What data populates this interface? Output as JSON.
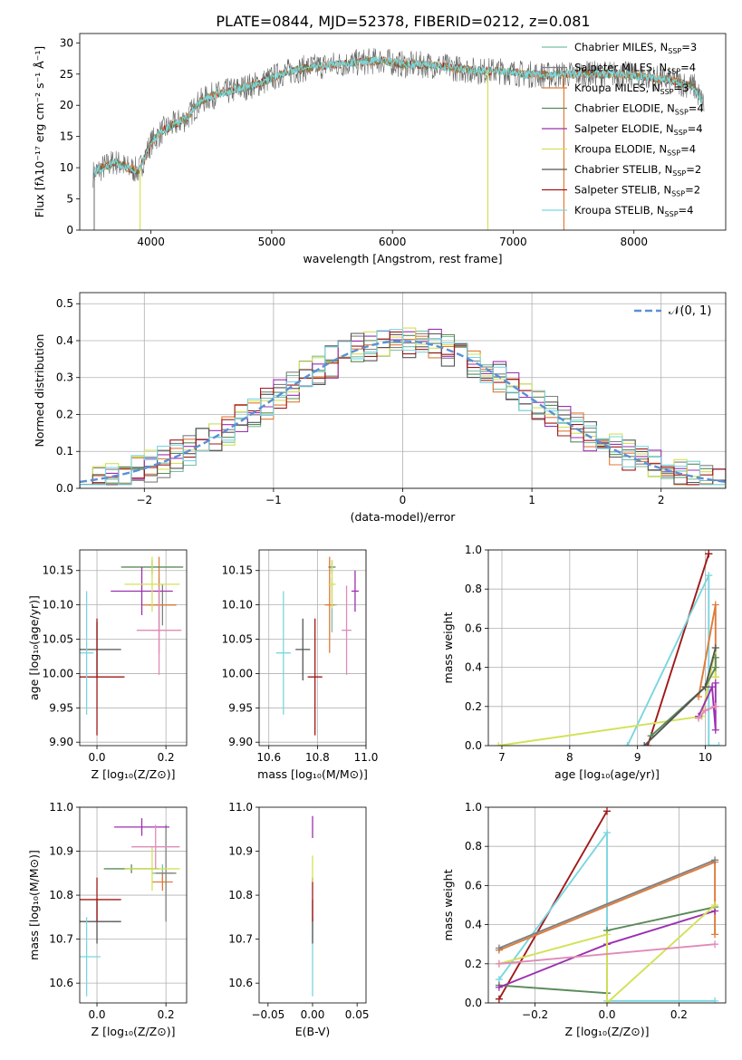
{
  "figure": {
    "title": "PLATE=0844, MJD=52378, FIBERID=0212, z=0.081"
  },
  "model_colors": {
    "Chabrier MILES": "#7bbfa0",
    "Salpeter MILES": "#808080",
    "Kroupa MILES": "#e07b39",
    "Chabrier ELODIE": "#5a8a5a",
    "Salpeter ELODIE": "#9b30b0",
    "Kroupa ELODIE": "#d4e157",
    "Chabrier STELIB": "#555555",
    "Salpeter STELIB": "#a01818",
    "Kroupa STELIB": "#7ad6df"
  },
  "chart_data": [
    {
      "id": "spectrum",
      "type": "line",
      "title": "PLATE=0844, MJD=52378, FIBERID=0212, z=0.081",
      "xlabel": "wavelength [Angstrom, rest frame]",
      "ylabel": "Flux [fλ10⁻¹⁷ erg cm⁻² s⁻¹ Å⁻¹]",
      "xlim": [
        3410,
        8760
      ],
      "ylim": [
        0,
        31.5
      ],
      "xticks": [
        4000,
        5000,
        6000,
        7000,
        8000
      ],
      "yticks": [
        0,
        5,
        10,
        15,
        20,
        25,
        30
      ],
      "grid": false,
      "legend_position": "top-right",
      "continuum": {
        "x": [
          3520,
          3600,
          3700,
          3800,
          3900,
          4000,
          4100,
          4200,
          4300,
          4400,
          4500,
          4700,
          4900,
          5100,
          5300,
          5500,
          5700,
          5900,
          6100,
          6300,
          6500,
          6700,
          6900,
          7100,
          7300,
          7500,
          7700,
          7900,
          8100,
          8300,
          8500,
          8580
        ],
        "y": [
          9,
          10,
          11,
          10,
          9.5,
          14,
          16,
          17,
          18,
          20.5,
          21.5,
          22.5,
          23.5,
          25.2,
          26,
          26.5,
          26.8,
          27.2,
          26.5,
          26.5,
          26,
          25.5,
          25.5,
          25,
          24.8,
          25,
          25,
          25,
          24.5,
          24,
          23,
          20
        ]
      },
      "observed_noise_amplitude": 2.2,
      "series": [
        {
          "name": "Chabrier MILES",
          "legend_label": "Chabrier MILES, N",
          "n_ssp_sub": "SSP",
          "n_ssp": "=3"
        },
        {
          "name": "Salpeter MILES",
          "legend_label": "Salpeter MILES, N",
          "n_ssp_sub": "SSP",
          "n_ssp": "=4"
        },
        {
          "name": "Kroupa MILES",
          "legend_label": "Kroupa MILES, N",
          "n_ssp_sub": "SSP",
          "n_ssp": "=3"
        },
        {
          "name": "Chabrier ELODIE",
          "legend_label": "Chabrier ELODIE, N",
          "n_ssp_sub": "SSP",
          "n_ssp": "=4"
        },
        {
          "name": "Salpeter ELODIE",
          "legend_label": "Salpeter ELODIE, N",
          "n_ssp_sub": "SSP",
          "n_ssp": "=4"
        },
        {
          "name": "Kroupa ELODIE",
          "legend_label": "Kroupa ELODIE, N",
          "n_ssp_sub": "SSP",
          "n_ssp": "=4"
        },
        {
          "name": "Chabrier STELIB",
          "legend_label": "Chabrier STELIB, N",
          "n_ssp_sub": "SSP",
          "n_ssp": "=2"
        },
        {
          "name": "Salpeter STELIB",
          "legend_label": "Salpeter STELIB, N",
          "n_ssp_sub": "SSP",
          "n_ssp": "=2"
        },
        {
          "name": "Kroupa STELIB",
          "legend_label": "Kroupa STELIB, N",
          "n_ssp_sub": "SSP",
          "n_ssp": "=4"
        }
      ],
      "drop_lines": [
        {
          "x": 3530,
          "model": "Salpeter MILES"
        },
        {
          "x": 3910,
          "model": "Kroupa ELODIE"
        },
        {
          "x": 6790,
          "model": "Kroupa ELODIE"
        },
        {
          "x": 7420,
          "model": "Kroupa MILES"
        }
      ]
    },
    {
      "id": "residuals",
      "type": "histogram",
      "xlabel": "(data-model)/error",
      "ylabel": "Normed distribution",
      "xlim": [
        -2.5,
        2.5
      ],
      "ylim": [
        0,
        0.53
      ],
      "xticks": [
        -2,
        -1,
        0,
        1,
        2
      ],
      "yticks": [
        0.0,
        0.1,
        0.2,
        0.3,
        0.4,
        0.5
      ],
      "grid": true,
      "legend_position": "top-right",
      "bin_width": 0.1,
      "bin_start": -2.5,
      "reference": {
        "name": "N(0,1)",
        "label": "𝒩(0, 1)",
        "color": "#5b8fd6",
        "mu": 0,
        "sigma": 1
      },
      "series": [
        "Chabrier MILES",
        "Salpeter MILES",
        "Kroupa MILES",
        "Chabrier ELODIE",
        "Salpeter ELODIE",
        "Kroupa ELODIE",
        "Chabrier STELIB",
        "Salpeter STELIB",
        "Kroupa STELIB"
      ]
    },
    {
      "id": "age-vs-Z",
      "type": "errorbar",
      "xlabel": "Z [log₁₀(Z/Z⊙)]",
      "ylabel": "age  [log₁₀(age/yr)]",
      "xlim": [
        -0.05,
        0.26
      ],
      "ylim": [
        9.895,
        10.18
      ],
      "xticks": [
        0.0,
        0.2
      ],
      "xticklabels": [
        "0.0",
        "0.2"
      ],
      "yticks": [
        9.9,
        9.95,
        10.0,
        10.05,
        10.1,
        10.15
      ],
      "yticklabels": [
        "9.90",
        "9.95",
        "10.00",
        "10.05",
        "10.10",
        "10.15"
      ],
      "grid": true,
      "points": [
        {
          "model": "Chabrier MILES",
          "x": 0.18,
          "y": 10.1,
          "xerr": 0.05,
          "yerr": 0.04
        },
        {
          "model": "Salpeter MILES",
          "x": 0.19,
          "y": 10.1,
          "xerr": 0.04,
          "yerr": 0.03
        },
        {
          "model": "Kroupa MILES",
          "x": 0.18,
          "y": 10.1,
          "xerr": 0.05,
          "yerr": 0.07
        },
        {
          "model": "Chabrier ELODIE",
          "x": 0.16,
          "y": 10.155,
          "xerr": 0.09,
          "yerr": 0.01
        },
        {
          "model": "Salpeter ELODIE",
          "x": 0.13,
          "y": 10.12,
          "xerr": 0.09,
          "yerr": 0.035
        },
        {
          "model": "Kroupa ELODIE",
          "x": 0.16,
          "y": 10.13,
          "xerr": 0.08,
          "yerr": 0.04
        },
        {
          "model": "Chabrier STELIB",
          "x": 0.0,
          "y": 10.035,
          "xerr": 0.07,
          "yerr": 0.04
        },
        {
          "model": "Salpeter STELIB",
          "x": 0.0,
          "y": 9.995,
          "xerr": 0.08,
          "yerr": 0.085
        },
        {
          "model": "Kroupa STELIB",
          "x": -0.03,
          "y": 10.03,
          "xerr": 0.02,
          "yerr": 0.09
        },
        {
          "model": "Pink",
          "x": 0.18,
          "y": 10.063,
          "xerr": 0.065,
          "yerr": 0.065
        }
      ]
    },
    {
      "id": "age-vs-mass",
      "type": "errorbar",
      "xlabel": "mass [log₁₀(M/M⊙)]",
      "xlim": [
        10.56,
        11.0
      ],
      "ylim": [
        9.895,
        10.18
      ],
      "xticks": [
        10.6,
        10.8,
        11.0
      ],
      "xticklabels": [
        "10.6",
        "10.8",
        "11.0"
      ],
      "yticks": [
        9.9,
        9.95,
        10.0,
        10.05,
        10.1,
        10.15
      ],
      "yticklabels": [
        "9.90",
        "9.95",
        "10.00",
        "10.05",
        "10.10",
        "10.15"
      ],
      "grid": true,
      "points": [
        {
          "model": "Chabrier MILES",
          "x": 10.86,
          "y": 10.1,
          "xerr": 0.02,
          "yerr": 0.04
        },
        {
          "model": "Kroupa MILES",
          "x": 10.85,
          "y": 10.1,
          "xerr": 0.02,
          "yerr": 0.07
        },
        {
          "model": "Chabrier ELODIE",
          "x": 10.86,
          "y": 10.155,
          "xerr": 0.015,
          "yerr": 0.01
        },
        {
          "model": "Salpeter ELODIE",
          "x": 10.955,
          "y": 10.12,
          "xerr": 0.015,
          "yerr": 0.03
        },
        {
          "model": "Kroupa ELODIE",
          "x": 10.86,
          "y": 10.13,
          "xerr": 0.015,
          "yerr": 0.035
        },
        {
          "model": "Chabrier STELIB",
          "x": 10.74,
          "y": 10.035,
          "xerr": 0.03,
          "yerr": 0.045
        },
        {
          "model": "Salpeter STELIB",
          "x": 10.79,
          "y": 9.995,
          "xerr": 0.03,
          "yerr": 0.085
        },
        {
          "model": "Kroupa STELIB",
          "x": 10.66,
          "y": 10.03,
          "xerr": 0.03,
          "yerr": 0.09
        },
        {
          "model": "Pink",
          "x": 10.92,
          "y": 10.063,
          "xerr": 0.02,
          "yerr": 0.065
        }
      ]
    },
    {
      "id": "weight-vs-age",
      "type": "line",
      "xlabel": "age  [log₁₀(age/yr)]",
      "ylabel": "mass weight",
      "xlim": [
        6.8,
        10.3
      ],
      "ylim": [
        0,
        1.0
      ],
      "xticks": [
        7,
        8,
        9,
        10
      ],
      "yticks": [
        0.0,
        0.2,
        0.4,
        0.6,
        0.8,
        1.0
      ],
      "yticklabels": [
        "0.0",
        "0.2",
        "0.4",
        "0.6",
        "0.8",
        "1.0"
      ],
      "grid": true,
      "series": [
        {
          "name": "Salpeter STELIB",
          "x": [
            9.15,
            10.05,
            10.05
          ],
          "y": [
            0.0,
            0.98,
            0.98
          ]
        },
        {
          "name": "Kroupa STELIB",
          "x": [
            8.85,
            10.05,
            10.05,
            10.2
          ],
          "y": [
            0.0,
            0.87,
            0.0,
            0.0
          ]
        },
        {
          "name": "Kroupa MILES",
          "x": [
            9.9,
            10.15,
            10.15
          ],
          "y": [
            0.25,
            0.72,
            0.35
          ]
        },
        {
          "name": "Kroupa ELODIE",
          "x": [
            6.95,
            9.95,
            10.15,
            10.15
          ],
          "y": [
            0.0,
            0.15,
            0.5,
            0.35
          ]
        },
        {
          "name": "Chabrier ELODIE",
          "x": [
            9.2,
            10.0,
            10.15,
            10.15
          ],
          "y": [
            0.05,
            0.3,
            0.4,
            0.45
          ]
        },
        {
          "name": "Salpeter ELODIE",
          "x": [
            9.9,
            10.1,
            10.15,
            10.15
          ],
          "y": [
            0.15,
            0.3,
            0.08,
            0.32
          ]
        },
        {
          "name": "Pink",
          "x": [
            9.9,
            10.0,
            10.15
          ],
          "y": [
            0.14,
            0.18,
            0.2
          ]
        },
        {
          "name": "Chabrier STELIB",
          "x": [
            9.1,
            10.0,
            10.15
          ],
          "y": [
            0.0,
            0.3,
            0.5
          ]
        }
      ]
    },
    {
      "id": "mass-vs-Z",
      "type": "errorbar",
      "xlabel": "Z [log₁₀(Z/Z⊙)]",
      "ylabel": "mass [log₁₀(M/M⊙)]",
      "xlim": [
        -0.05,
        0.26
      ],
      "ylim": [
        10.555,
        11.0
      ],
      "xticks": [
        0.0,
        0.2
      ],
      "xticklabels": [
        "0.0",
        "0.2"
      ],
      "yticks": [
        10.6,
        10.7,
        10.8,
        10.9,
        11.0
      ],
      "yticklabels": [
        "10.6",
        "10.7",
        "10.8",
        "10.9",
        "11.0"
      ],
      "grid": true,
      "points": [
        {
          "model": "Chabrier MILES",
          "x": 0.19,
          "y": 10.85,
          "xerr": 0.03,
          "yerr": 0.02
        },
        {
          "model": "Kroupa MILES",
          "x": 0.19,
          "y": 10.83,
          "xerr": 0.03,
          "yerr": 0.02
        },
        {
          "model": "Salpeter MILES",
          "x": 0.2,
          "y": 10.85,
          "xerr": 0.03,
          "yerr": 0.11
        },
        {
          "model": "Chabrier ELODIE",
          "x": 0.1,
          "y": 10.86,
          "xerr": 0.08,
          "yerr": 0.01
        },
        {
          "model": "Salpeter ELODIE",
          "x": 0.13,
          "y": 10.955,
          "xerr": 0.08,
          "yerr": 0.02
        },
        {
          "model": "Kroupa ELODIE",
          "x": 0.16,
          "y": 10.86,
          "xerr": 0.08,
          "yerr": 0.05
        },
        {
          "model": "Chabrier STELIB",
          "x": 0.0,
          "y": 10.74,
          "xerr": 0.07,
          "yerr": 0.05
        },
        {
          "model": "Salpeter STELIB",
          "x": 0.0,
          "y": 10.79,
          "xerr": 0.07,
          "yerr": 0.05
        },
        {
          "model": "Kroupa STELIB",
          "x": -0.03,
          "y": 10.66,
          "xerr": 0.04,
          "yerr": 0.09
        },
        {
          "model": "Pink",
          "x": 0.17,
          "y": 10.91,
          "xerr": 0.07,
          "yerr": 0.05
        }
      ]
    },
    {
      "id": "mass-vs-EBV",
      "type": "errorbar",
      "xlabel": "E(B-V)",
      "xlim": [
        -0.06,
        0.06
      ],
      "ylim": [
        10.555,
        11.0
      ],
      "xticks": [
        -0.05,
        0.0,
        0.05
      ],
      "xticklabels": [
        "−0.05",
        "0.00",
        "0.05"
      ],
      "yticks": [
        10.6,
        10.7,
        10.8,
        10.9,
        11.0
      ],
      "yticklabels": [
        "10.6",
        "10.7",
        "10.8",
        "10.9",
        "11.0"
      ],
      "grid": false,
      "points": [
        {
          "model": "Kroupa STELIB",
          "x": 0.0,
          "y": 10.66,
          "xerr": 0.0,
          "yerr": 0.09
        },
        {
          "model": "Chabrier STELIB",
          "x": 0.0,
          "y": 10.74,
          "xerr": 0.0,
          "yerr": 0.05
        },
        {
          "model": "Salpeter STELIB",
          "x": 0.0,
          "y": 10.79,
          "xerr": 0.0,
          "yerr": 0.05
        },
        {
          "model": "Kroupa ELODIE",
          "x": 0.0,
          "y": 10.86,
          "xerr": 0.0,
          "yerr": 0.03
        },
        {
          "model": "Salpeter ELODIE",
          "x": 0.0,
          "y": 10.955,
          "xerr": 0.0,
          "yerr": 0.025
        }
      ]
    },
    {
      "id": "weight-vs-Z",
      "type": "line",
      "xlabel": "Z [log₁₀(Z/Z⊙)]",
      "ylabel": "mass weight",
      "xlim": [
        -0.33,
        0.33
      ],
      "ylim": [
        0,
        1.0
      ],
      "xticks": [
        -0.2,
        0.0,
        0.2
      ],
      "xticklabels": [
        "−0.2",
        "0.0",
        "0.2"
      ],
      "yticks": [
        0.0,
        0.2,
        0.4,
        0.6,
        0.8,
        1.0
      ],
      "yticklabels": [
        "0.0",
        "0.2",
        "0.4",
        "0.6",
        "0.8",
        "1.0"
      ],
      "grid": true,
      "series": [
        {
          "name": "Salpeter STELIB",
          "x": [
            -0.3,
            0.0
          ],
          "y": [
            0.02,
            0.98
          ]
        },
        {
          "name": "Kroupa STELIB",
          "x": [
            -0.3,
            0.0,
            0.0,
            0.3
          ],
          "y": [
            0.12,
            0.87,
            0.01,
            0.01
          ]
        },
        {
          "name": "Kroupa MILES",
          "x": [
            -0.3,
            0.3,
            0.3
          ],
          "y": [
            0.27,
            0.72,
            0.35
          ]
        },
        {
          "name": "Salpeter MILES",
          "x": [
            -0.3,
            0.3
          ],
          "y": [
            0.28,
            0.73
          ]
        },
        {
          "name": "Chabrier ELODIE",
          "x": [
            -0.3,
            0.0,
            0.0,
            0.3
          ],
          "y": [
            0.09,
            0.05,
            0.37,
            0.49
          ]
        },
        {
          "name": "Salpeter ELODIE",
          "x": [
            -0.3,
            0.0,
            0.3
          ],
          "y": [
            0.08,
            0.3,
            0.47
          ]
        },
        {
          "name": "Kroupa ELODIE",
          "x": [
            -0.3,
            0.0,
            0.0,
            0.3
          ],
          "y": [
            0.2,
            0.35,
            0.0,
            0.5
          ]
        },
        {
          "name": "Pink",
          "x": [
            -0.3,
            0.3
          ],
          "y": [
            0.2,
            0.3
          ]
        }
      ]
    }
  ]
}
